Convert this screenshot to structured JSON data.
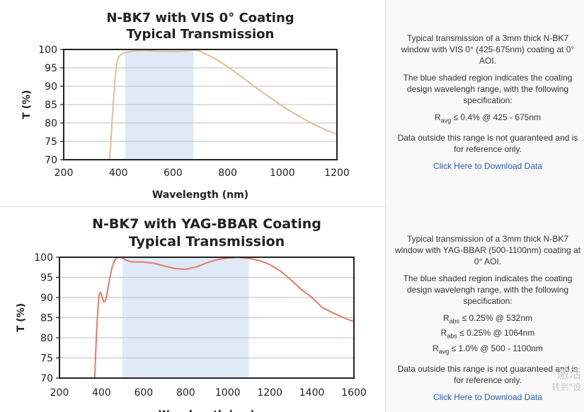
{
  "charts": [
    {
      "description": {
        "p1": "Typical transmission of a 3mm thick N-BK7 window with VIS 0° (425-675nm) coating at 0° AOI.",
        "p2": "The blue shaded region indicates the coating design wavelengh range, with the following specification:",
        "specs": [
          {
            "symbol": "R",
            "sub": "avg",
            "text": "≤ 0.4% @ 425 - 675nm"
          }
        ],
        "p3": "Data outside this range is not guaranteed and is for reference only.",
        "link": "Click Here to Download Data"
      }
    },
    {
      "description": {
        "p1": "Typical transmission of a 3mm thick N-BK7 window with YAG-BBAR (500-1100nm) coating at 0° AOI.",
        "p2": "The blue shaded region indicates the coating design wavelengh range, with the following specification:",
        "specs": [
          {
            "symbol": "R",
            "sub": "abs",
            "text": "≤ 0.25% @ 532nm"
          },
          {
            "symbol": "R",
            "sub": "abs",
            "text": "≤ 0.25% @ 1064nm"
          },
          {
            "symbol": "R",
            "sub": "avg",
            "text": "≤ 1.0% @ 500 - 1100nm"
          }
        ],
        "p3": "Data outside this range is not guaranteed and is for reference only.",
        "link": "Click Here to Download Data"
      }
    }
  ],
  "watermark": {
    "line1": "激活",
    "line2": "转到\"设"
  },
  "chart_data": [
    {
      "type": "line",
      "title": [
        "N-BK7 with VIS 0° Coating",
        "Typical Transmission"
      ],
      "xlabel": "Wavelength (nm)",
      "ylabel": "T (%)",
      "xlim": [
        200,
        1200
      ],
      "ylim": [
        70,
        100
      ],
      "xticks": [
        200,
        400,
        600,
        800,
        1000,
        1200
      ],
      "yticks": [
        70,
        75,
        80,
        85,
        90,
        95,
        100
      ],
      "grid": true,
      "shaded_range": [
        425,
        675
      ],
      "shade_color": "#dfeaf6",
      "series": [
        {
          "color": "#d8c29a",
          "x": [
            368,
            372,
            376,
            380,
            385,
            390,
            395,
            400,
            405,
            410,
            420,
            430,
            450,
            475,
            500,
            550,
            600,
            650,
            675,
            690,
            700,
            750,
            800,
            850,
            900,
            950,
            1000,
            1050,
            1100,
            1150,
            1200
          ],
          "y": [
            70,
            74,
            79,
            84,
            89,
            93.5,
            96.5,
            97.8,
            98.3,
            98.6,
            99,
            99.2,
            99.5,
            99.7,
            99.7,
            99.5,
            99.4,
            99.6,
            99.8,
            99.7,
            99.5,
            97.7,
            95.3,
            92.6,
            89.8,
            87.2,
            84.6,
            82.3,
            80.2,
            78.4,
            76.9
          ]
        }
      ]
    },
    {
      "type": "line",
      "title": [
        "N-BK7 with YAG-BBAR Coating",
        "Typical Transmission"
      ],
      "xlabel": "Wavelength (nm)",
      "ylabel": "T (%)",
      "xlim": [
        200,
        1600
      ],
      "ylim": [
        70,
        100
      ],
      "xticks": [
        200,
        400,
        600,
        800,
        1000,
        1200,
        1400,
        1600
      ],
      "yticks": [
        70,
        75,
        80,
        85,
        90,
        95,
        100
      ],
      "grid": true,
      "shaded_range": [
        500,
        1100
      ],
      "shade_color": "#dfeaf6",
      "series": [
        {
          "color": "#e07c68",
          "x": [
            368,
            372,
            378,
            385,
            390,
            395,
            400,
            405,
            410,
            415,
            420,
            425,
            430,
            440,
            450,
            460,
            470,
            480,
            490,
            500,
            510,
            520,
            540,
            560,
            580,
            600,
            650,
            700,
            750,
            800,
            850,
            900,
            950,
            1000,
            1050,
            1100,
            1150,
            1200,
            1250,
            1300,
            1350,
            1400,
            1450,
            1500,
            1550,
            1600
          ],
          "y": [
            70,
            76,
            83,
            89,
            91,
            91.3,
            90.8,
            89.7,
            89,
            89,
            89.5,
            90.5,
            92,
            95,
            97.5,
            99,
            99.7,
            100,
            100,
            99.8,
            99.5,
            99.2,
            98.9,
            98.8,
            98.8,
            98.8,
            98.5,
            97.8,
            97.2,
            97,
            97.6,
            98.6,
            99.4,
            99.8,
            100,
            99.7,
            99.2,
            98.2,
            96.6,
            94.4,
            92,
            90,
            87.5,
            86.2,
            85,
            84
          ]
        }
      ]
    }
  ]
}
